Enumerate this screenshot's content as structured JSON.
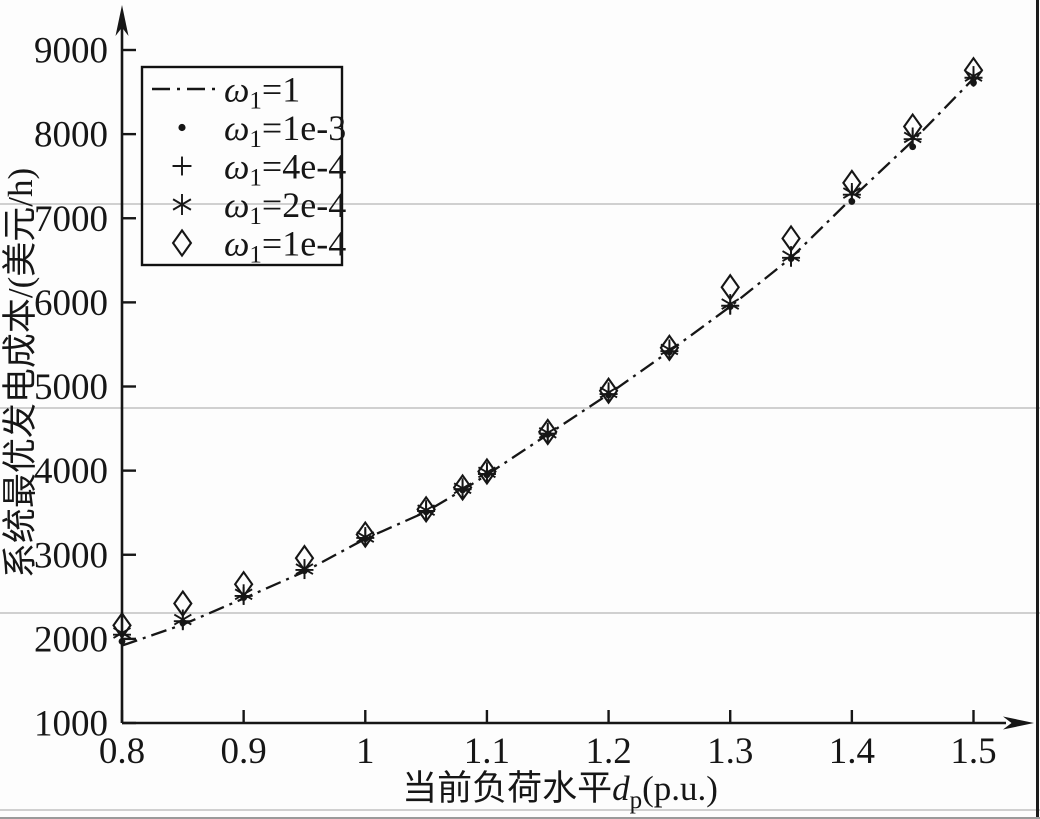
{
  "figure": {
    "background": "#fdfdfd",
    "ink_color": "#161616",
    "scan_line_color": "#c2c2c2",
    "scan_lines_y": [
      204,
      408,
      613,
      810
    ],
    "right_border_x": 1037.5,
    "bottom_border_y": 818
  },
  "chart_data": {
    "type": "line",
    "title": "",
    "xlabel_text": "当前负荷水平",
    "xlabel_var": "d",
    "xlabel_var_sub": "p",
    "xlabel_unit": "(p.u.)",
    "ylabel": "系统最优发电成本/(美元/h)",
    "xlim": [
      0.8,
      1.5
    ],
    "ylim": [
      1000,
      9000
    ],
    "x_tick_values": [
      0.8,
      0.9,
      1.0,
      1.1,
      1.2,
      1.3,
      1.4,
      1.5
    ],
    "x_tick_labels": [
      "0.8",
      "0.9",
      "1",
      "1.1",
      "1.2",
      "1.3",
      "1.4",
      "1.5"
    ],
    "y_tick_values": [
      1000,
      2000,
      3000,
      4000,
      5000,
      6000,
      7000,
      8000,
      9000
    ],
    "y_tick_labels": [
      "1000",
      "2000",
      "3000",
      "4000",
      "5000",
      "6000",
      "7000",
      "8000",
      "9000"
    ],
    "grid": false,
    "legend_position": "upper-left",
    "x": [
      0.8,
      0.85,
      0.9,
      0.95,
      1.0,
      1.05,
      1.08,
      1.1,
      1.15,
      1.2,
      1.25,
      1.3,
      1.35,
      1.4,
      1.45,
      1.5
    ],
    "series": [
      {
        "name": "omega1-1",
        "label_sym": "ω",
        "label_sub": "1",
        "label_rest": "=1",
        "marker": "none",
        "line": "dashdot",
        "values": [
          1920,
          2170,
          2480,
          2800,
          3190,
          3510,
          3770,
          3950,
          4430,
          4910,
          5420,
          5950,
          6530,
          7240,
          7920,
          8660
        ]
      },
      {
        "name": "omega1-1e-3",
        "label_sym": "ω",
        "label_sub": "1",
        "label_rest": "=1e-3",
        "marker": "dot",
        "line": "none",
        "values": [
          1970,
          2190,
          2490,
          2810,
          3190,
          3510,
          3770,
          3950,
          4430,
          4900,
          5410,
          5950,
          6520,
          7200,
          7850,
          8610
        ]
      },
      {
        "name": "omega1-4e-4",
        "label_sym": "ω",
        "label_sub": "1",
        "label_rest": "=4e-4",
        "marker": "plus",
        "line": "none",
        "values": [
          2050,
          2210,
          2510,
          2820,
          3200,
          3520,
          3780,
          3960,
          4440,
          4910,
          5420,
          5960,
          6530,
          7280,
          7940,
          8670
        ]
      },
      {
        "name": "omega1-2e-4",
        "label_sym": "ω",
        "label_sub": "1",
        "label_rest": "=2e-4",
        "marker": "asterisk",
        "line": "none",
        "values": [
          2070,
          2230,
          2530,
          2830,
          3210,
          3530,
          3790,
          3980,
          4450,
          4930,
          5440,
          5980,
          6550,
          7300,
          7960,
          8690
        ]
      },
      {
        "name": "omega1-1e-4",
        "label_sym": "ω",
        "label_sub": "1",
        "label_rest": "=1e-4",
        "marker": "diamond",
        "line": "none",
        "values": [
          2160,
          2420,
          2650,
          2960,
          3240,
          3540,
          3800,
          3990,
          4460,
          4950,
          5460,
          6180,
          6760,
          7420,
          8090,
          8760
        ]
      }
    ]
  }
}
